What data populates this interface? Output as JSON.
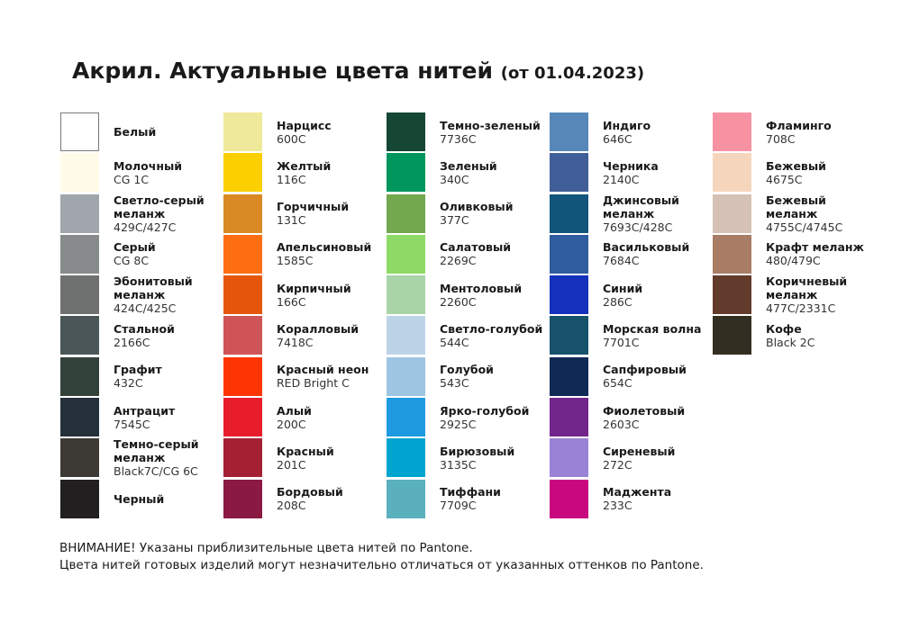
{
  "title": {
    "main": "Акрил. Актуальные цвета нитей",
    "date": "(от 01.04.2023)"
  },
  "columns": [
    [
      {
        "name": "Белый",
        "code": "",
        "color": "#ffffff",
        "bordered": true
      },
      {
        "name": "Молочный",
        "code": "CG 1C",
        "color": "#fffbe8"
      },
      {
        "name": "Светло-серый меланж",
        "name_lines": [
          "Светло-серый",
          "меланж"
        ],
        "code": "429C/427C",
        "color": "#a0a6ab"
      },
      {
        "name": "Серый",
        "code": "CG 8C",
        "color": "#878b8b"
      },
      {
        "name": "Эбонитовый меланж",
        "name_lines": [
          "Эбонитовый",
          "меланж"
        ],
        "code": "424C/425C",
        "color": "#6f7170"
      },
      {
        "name": "Стальной",
        "code": "2166C",
        "color": "#4b5659"
      },
      {
        "name": "Графит",
        "code": "432C",
        "color": "#33413b"
      },
      {
        "name": "Антрацит",
        "code": "7545C",
        "color": "#26303a"
      },
      {
        "name": "Темно-серый меланж",
        "name_lines": [
          "Темно-серый",
          "меланж"
        ],
        "code": "Black7C/CG 6C",
        "color": "#3d3a35"
      },
      {
        "name": "Черный",
        "code": "",
        "color": "#221f20"
      }
    ],
    [
      {
        "name": "Нарцисс",
        "code": "600C",
        "color": "#efe99b"
      },
      {
        "name": "Желтый",
        "code": "116C",
        "color": "#fbcf00"
      },
      {
        "name": "Горчичный",
        "code": "131C",
        "color": "#d98a24"
      },
      {
        "name": "Апельсиновый",
        "code": "1585C",
        "color": "#fd6d12"
      },
      {
        "name": "Кирпичный",
        "code": "166C",
        "color": "#e5560c"
      },
      {
        "name": "Коралловый",
        "code": "7418C",
        "color": "#cf5458"
      },
      {
        "name": "Красный неон",
        "code": "RED Bright C",
        "color": "#fe3402"
      },
      {
        "name": "Алый",
        "code": "200C",
        "color": "#e81d2b"
      },
      {
        "name": "Красный",
        "code": "201C",
        "color": "#a42134"
      },
      {
        "name": "Бордовый",
        "code": "208C",
        "color": "#8a1a42"
      }
    ],
    [
      {
        "name": "Темно-зеленый",
        "code": "7736C",
        "color": "#154734"
      },
      {
        "name": "Зеленый",
        "code": "340C",
        "color": "#00965e"
      },
      {
        "name": "Оливковый",
        "code": "377C",
        "color": "#73a84f"
      },
      {
        "name": "Салатовый",
        "code": "2269C",
        "color": "#8ddb66"
      },
      {
        "name": "Ментоловый",
        "code": "2260C",
        "color": "#a8d4a8"
      },
      {
        "name": "Светло-голубой",
        "code": "544C",
        "color": "#bdd4e8"
      },
      {
        "name": "Голубой",
        "code": "543C",
        "color": "#9ec5e2"
      },
      {
        "name": "Ярко-голубой",
        "code": "2925C",
        "color": "#1d9ae0"
      },
      {
        "name": "Бирюзовый",
        "code": "3135C",
        "color": "#00a5cf"
      },
      {
        "name": "Тиффани",
        "code": "7709C",
        "color": "#5ab0bc"
      }
    ],
    [
      {
        "name": "Индиго",
        "code": "646C",
        "color": "#5687b8"
      },
      {
        "name": "Черника",
        "code": "2140C",
        "color": "#405e98"
      },
      {
        "name": "Джинсовый меланж",
        "name_lines": [
          "Джинсовый",
          "меланж"
        ],
        "code": "7693C/428C",
        "color": "#12557a"
      },
      {
        "name": "Васильковый",
        "code": "7684C",
        "color": "#305ca0"
      },
      {
        "name": "Синий",
        "code": "286C",
        "color": "#1530bd"
      },
      {
        "name": "Морская волна",
        "code": "7701C",
        "color": "#17526b"
      },
      {
        "name": "Сапфировый",
        "code": "654C",
        "color": "#112a55"
      },
      {
        "name": "Фиолетовый",
        "code": "2603C",
        "color": "#72258b"
      },
      {
        "name": "Сиреневый",
        "code": "272C",
        "color": "#9a82d6"
      },
      {
        "name": "Маджента",
        "code": "233C",
        "color": "#c9077e"
      }
    ],
    [
      {
        "name": "Фламинго",
        "code": "708C",
        "color": "#f792a3"
      },
      {
        "name": "Бежевый",
        "code": "4675C",
        "color": "#f5d6bd"
      },
      {
        "name": "Бежевый меланж",
        "name_lines": [
          "Бежевый",
          "меланж"
        ],
        "code": "4755C/4745C",
        "color": "#d6c1b6"
      },
      {
        "name": "Крафт меланж",
        "code": "480/479C",
        "color": "#a87c65"
      },
      {
        "name": "Коричневый меланж",
        "name_lines": [
          "Коричневый",
          "меланж"
        ],
        "code": "477C/2331C",
        "color": "#633b2c"
      },
      {
        "name": "Кофе",
        "code": "Black 2C",
        "color": "#322f22"
      }
    ]
  ],
  "note": {
    "line1": "ВНИМАНИЕ! Указаны приблизительные цвета нитей по Pantone.",
    "line2": "Цвета нитей готовых изделий могут незначительно отличаться от указанных оттенков по Pantone."
  }
}
